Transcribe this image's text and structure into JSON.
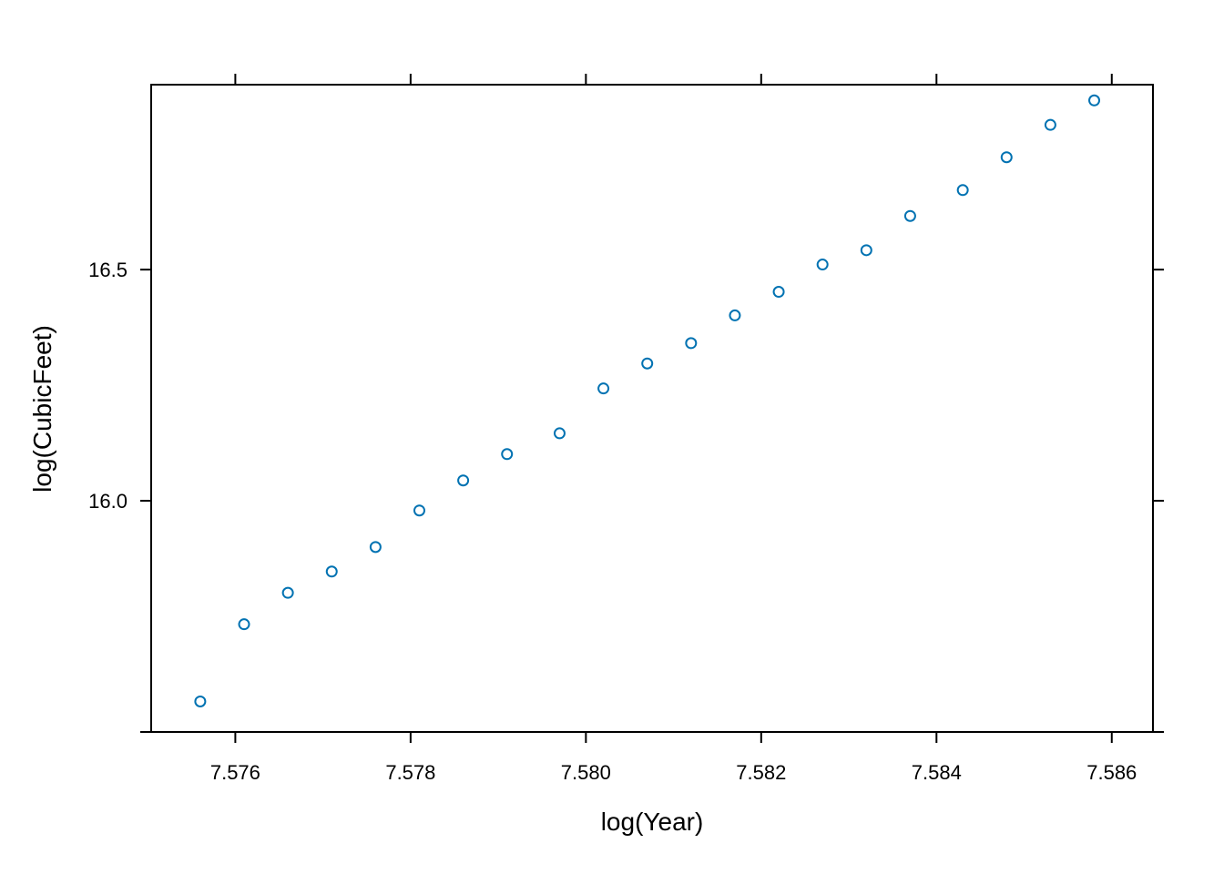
{
  "chart_data": {
    "type": "scatter",
    "xlabel": "log(Year)",
    "ylabel": "log(CubicFeet)",
    "xlim": [
      7.57504,
      7.58647
    ],
    "ylim": [
      15.5,
      16.9
    ],
    "xticks": [
      7.576,
      7.578,
      7.58,
      7.582,
      7.584,
      7.586
    ],
    "xtick_labels": [
      "7.576",
      "7.578",
      "7.580",
      "7.582",
      "7.584",
      "7.586"
    ],
    "yticks": [
      15.5,
      16.0,
      16.5
    ],
    "ytick_labels": [
      "",
      "16.0",
      "16.5"
    ],
    "grid": false,
    "marker": "open-circle",
    "point_color": "#0072b2",
    "x": [
      7.5756,
      7.5761,
      7.5766,
      7.5771,
      7.5776,
      7.5781,
      7.5786,
      7.5791,
      7.5797,
      7.5802,
      7.5807,
      7.5812,
      7.5817,
      7.5822,
      7.5827,
      7.5832,
      7.5837,
      7.5843,
      7.5848,
      7.5853,
      7.5858
    ],
    "y": [
      15.566,
      15.733,
      15.801,
      15.847,
      15.9,
      15.979,
      16.044,
      16.101,
      16.146,
      16.243,
      16.297,
      16.341,
      16.401,
      16.452,
      16.511,
      16.542,
      16.616,
      16.672,
      16.743,
      16.813,
      16.866
    ]
  }
}
